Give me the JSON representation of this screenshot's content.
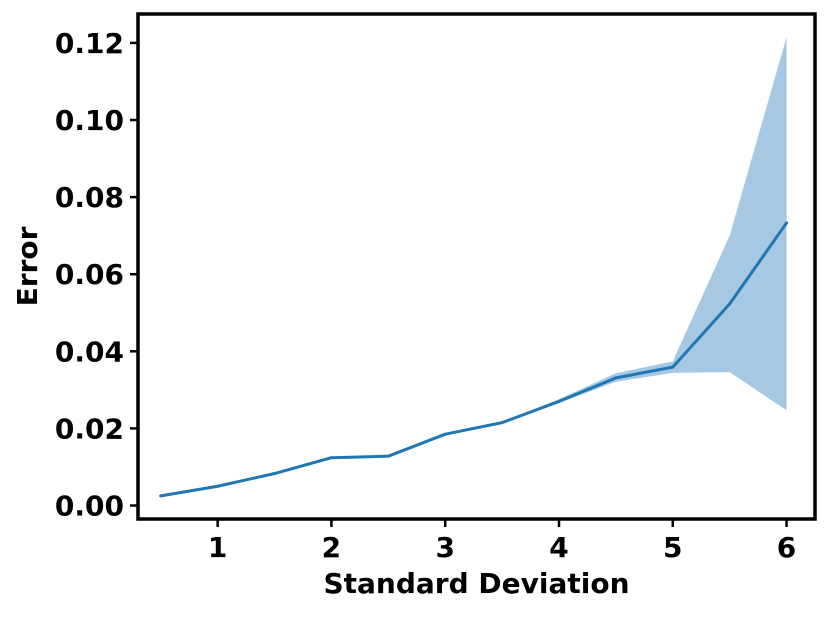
{
  "chart_data": {
    "type": "line",
    "title": "",
    "xlabel": "Standard Deviation",
    "ylabel": "Error",
    "xlim": [
      0.3,
      6.25
    ],
    "ylim": [
      -0.0035,
      0.1275
    ],
    "x_ticks": [
      1,
      2,
      3,
      4,
      5,
      6
    ],
    "y_ticks": [
      0.0,
      0.02,
      0.04,
      0.06,
      0.08,
      0.1,
      0.12
    ],
    "x_tick_labels": [
      "1",
      "2",
      "3",
      "4",
      "5",
      "6"
    ],
    "y_tick_labels": [
      "0.00",
      "0.02",
      "0.04",
      "0.06",
      "0.08",
      "0.10",
      "0.12"
    ],
    "grid": false,
    "legend": "none",
    "series": [
      {
        "color": "#1f77b4",
        "band_color": "#a6c8e3",
        "x": [
          0.5,
          1.0,
          1.5,
          2.0,
          2.5,
          3.0,
          3.5,
          4.0,
          4.5,
          5.0,
          5.5,
          6.0
        ],
        "values": [
          0.0025,
          0.005,
          0.0083,
          0.0124,
          0.0128,
          0.0185,
          0.0215,
          0.027,
          0.0331,
          0.0359,
          0.0523,
          0.0733
        ],
        "lower": [
          0.0025,
          0.005,
          0.0083,
          0.0124,
          0.0128,
          0.0185,
          0.0215,
          0.0266,
          0.0321,
          0.0344,
          0.0346,
          0.0247
        ],
        "upper": [
          0.0025,
          0.005,
          0.0083,
          0.0124,
          0.0128,
          0.0185,
          0.0215,
          0.0276,
          0.0343,
          0.0374,
          0.07,
          0.1215
        ]
      }
    ]
  }
}
